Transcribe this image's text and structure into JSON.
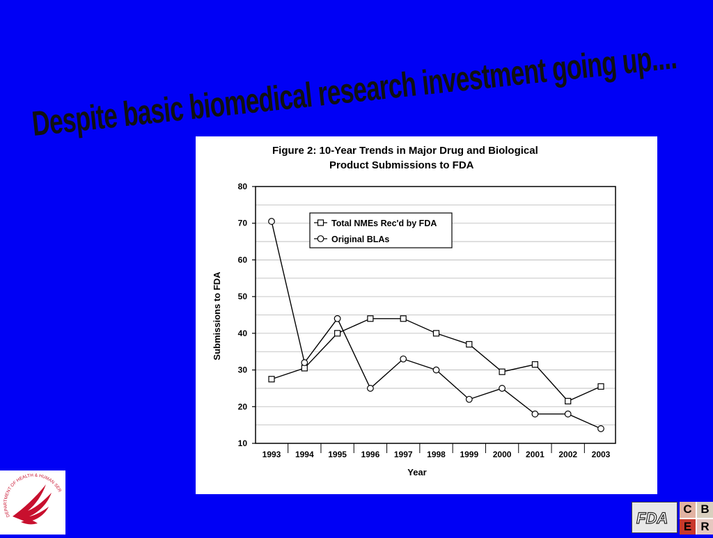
{
  "slide": {
    "headline": "Despite basic biomedical research investment going up....",
    "background_color": "#0000f5"
  },
  "chart_data": {
    "type": "line",
    "title_line1": "Figure 2:  10-Year Trends in Major Drug and Biological",
    "title_line2": "Product Submissions to FDA",
    "xlabel": "Year",
    "ylabel": "Submissions to FDA",
    "categories": [
      "1993",
      "1994",
      "1995",
      "1996",
      "1997",
      "1998",
      "1999",
      "2000",
      "2001",
      "2002",
      "2003"
    ],
    "ylim": [
      10,
      80
    ],
    "yticks": [
      10,
      20,
      30,
      40,
      50,
      60,
      70,
      80
    ],
    "grid": "horizontal minor gridlines",
    "legend_position": "top-center",
    "series": [
      {
        "name": "Total NMEs Rec'd by FDA",
        "marker": "square",
        "values": [
          27.5,
          30.5,
          40,
          44,
          44,
          40,
          37,
          29.5,
          31.5,
          21.5,
          25.5
        ]
      },
      {
        "name": "Original BLAs",
        "marker": "circle",
        "values": [
          70.5,
          32,
          44,
          25,
          33,
          30,
          22,
          25,
          18,
          18,
          14
        ]
      }
    ]
  },
  "logos": {
    "hhs_arc_text": "DEPARTMENT OF HEALTH & HUMAN SERVICES. USA",
    "fda_text": "FDA",
    "cber_letters": [
      "C",
      "B",
      "E",
      "R"
    ],
    "cber_colors": [
      "#e2b3a3",
      "#d9d0bf",
      "#c9392c",
      "#e6c8c0"
    ]
  }
}
